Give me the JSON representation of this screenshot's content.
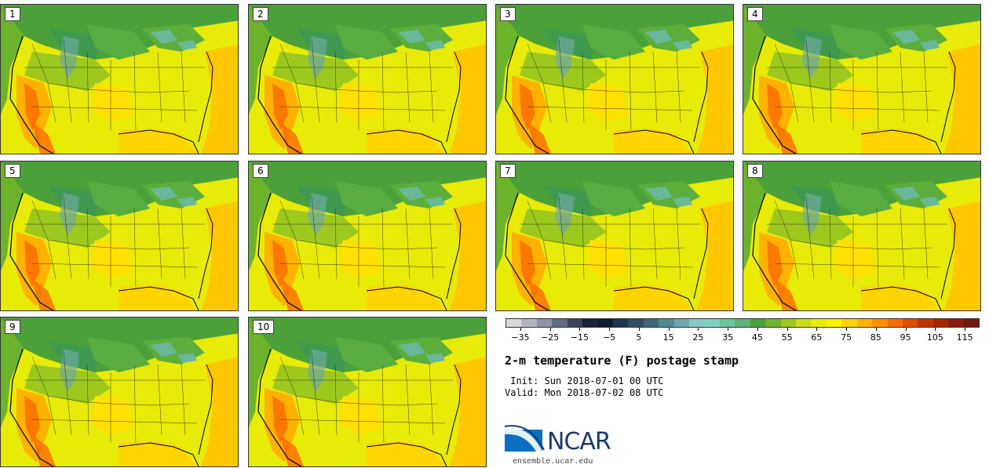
{
  "panels": [
    "1",
    "2",
    "3",
    "4",
    "5",
    "6",
    "7",
    "8",
    "9",
    "10"
  ],
  "colorbar": {
    "colors": [
      "#d9d9d9",
      "#b3b6bd",
      "#8d93a2",
      "#606a80",
      "#38445e",
      "#17223b",
      "#0d1a30",
      "#1e3550",
      "#2f4e66",
      "#3f6878",
      "#4f8a94",
      "#6aa9ad",
      "#86c9c4",
      "#7fd1bd",
      "#6bc69a",
      "#5cb374",
      "#47a13d",
      "#6fb42b",
      "#9dc81e",
      "#c9dd10",
      "#eaed05",
      "#fff200",
      "#ffd400",
      "#ffb200",
      "#ff8f00",
      "#fb6a00",
      "#e04b00",
      "#c53300",
      "#a82400",
      "#8b1b10",
      "#6e1a10"
    ],
    "tick_labels": [
      "-35",
      "-25",
      "-15",
      "-5",
      "5",
      "15",
      "25",
      "35",
      "45",
      "55",
      "65",
      "75",
      "85",
      "95",
      "105",
      "115"
    ],
    "range": [
      -40,
      120
    ]
  },
  "title": "2-m temperature (F) postage stamp",
  "init": " Init: Sun 2018-07-01 00 UTC",
  "valid": "Valid: Mon 2018-07-02 08 UTC",
  "logo": {
    "text": "NCAR",
    "url": "ensemble.ucar.edu"
  }
}
